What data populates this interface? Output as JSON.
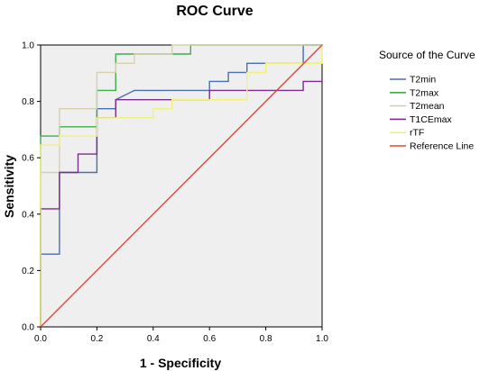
{
  "chart_data": {
    "type": "line",
    "title": "ROC Curve",
    "xlabel": "1 - Specificity",
    "ylabel": "Sensitivity",
    "xlim": [
      0,
      1
    ],
    "ylim": [
      0,
      1
    ],
    "x_ticks": [
      "0.0",
      "0.2",
      "0.4",
      "0.6",
      "0.8",
      "1.0"
    ],
    "y_ticks": [
      "0.0",
      "0.2",
      "0.4",
      "0.6",
      "0.8",
      "1.0"
    ],
    "grid": false,
    "background": "#efefef",
    "legend": {
      "title": "Source of the Curve",
      "placement": "right"
    },
    "series": [
      {
        "name": "T2min",
        "color": "#4a6fb0",
        "points": [
          [
            0,
            0
          ],
          [
            0,
            0.258
          ],
          [
            0.067,
            0.258
          ],
          [
            0.067,
            0.548
          ],
          [
            0.2,
            0.548
          ],
          [
            0.2,
            0.774
          ],
          [
            0.267,
            0.774
          ],
          [
            0.267,
            0.806
          ],
          [
            0.333,
            0.839
          ],
          [
            0.6,
            0.839
          ],
          [
            0.6,
            0.871
          ],
          [
            0.667,
            0.871
          ],
          [
            0.667,
            0.903
          ],
          [
            0.733,
            0.903
          ],
          [
            0.733,
            0.935
          ],
          [
            0.933,
            0.935
          ],
          [
            0.933,
            1.0
          ],
          [
            1.0,
            1.0
          ]
        ]
      },
      {
        "name": "T2max",
        "color": "#3fad4a",
        "points": [
          [
            0,
            0
          ],
          [
            0,
            0.677
          ],
          [
            0.067,
            0.677
          ],
          [
            0.067,
            0.71
          ],
          [
            0.2,
            0.71
          ],
          [
            0.2,
            0.839
          ],
          [
            0.267,
            0.839
          ],
          [
            0.267,
            0.968
          ],
          [
            0.533,
            0.968
          ],
          [
            0.533,
            1.0
          ],
          [
            1.0,
            1.0
          ]
        ]
      },
      {
        "name": "T2mean",
        "color": "#d6d0b0",
        "points": [
          [
            0,
            0
          ],
          [
            0,
            0.548
          ],
          [
            0.067,
            0.548
          ],
          [
            0.067,
            0.774
          ],
          [
            0.2,
            0.774
          ],
          [
            0.2,
            0.903
          ],
          [
            0.267,
            0.903
          ],
          [
            0.267,
            0.935
          ],
          [
            0.333,
            0.935
          ],
          [
            0.333,
            0.968
          ],
          [
            0.467,
            0.968
          ],
          [
            0.467,
            1.0
          ],
          [
            1.0,
            1.0
          ]
        ]
      },
      {
        "name": "T1CEmax",
        "color": "#7a2d8a",
        "points": [
          [
            0,
            0
          ],
          [
            0,
            0.419
          ],
          [
            0.067,
            0.419
          ],
          [
            0.067,
            0.548
          ],
          [
            0.133,
            0.548
          ],
          [
            0.133,
            0.613
          ],
          [
            0.2,
            0.613
          ],
          [
            0.2,
            0.742
          ],
          [
            0.267,
            0.742
          ],
          [
            0.267,
            0.806
          ],
          [
            0.6,
            0.806
          ],
          [
            0.6,
            0.839
          ],
          [
            0.933,
            0.839
          ],
          [
            0.933,
            0.871
          ],
          [
            1.0,
            0.871
          ]
        ]
      },
      {
        "name": "rTF",
        "color": "#f0f07a",
        "points": [
          [
            0,
            0
          ],
          [
            0,
            0.645
          ],
          [
            0.067,
            0.645
          ],
          [
            0.067,
            0.677
          ],
          [
            0.2,
            0.677
          ],
          [
            0.2,
            0.742
          ],
          [
            0.267,
            0.742
          ],
          [
            0.267,
            0.742
          ],
          [
            0.4,
            0.742
          ],
          [
            0.4,
            0.774
          ],
          [
            0.467,
            0.774
          ],
          [
            0.467,
            0.806
          ],
          [
            0.733,
            0.806
          ],
          [
            0.733,
            0.903
          ],
          [
            0.8,
            0.903
          ],
          [
            0.8,
            0.935
          ],
          [
            1.0,
            0.935
          ],
          [
            1.0,
            1.0
          ]
        ]
      },
      {
        "name": "Reference Line",
        "color": "#e0463c",
        "points": [
          [
            0,
            0
          ],
          [
            1,
            1
          ]
        ]
      }
    ]
  }
}
